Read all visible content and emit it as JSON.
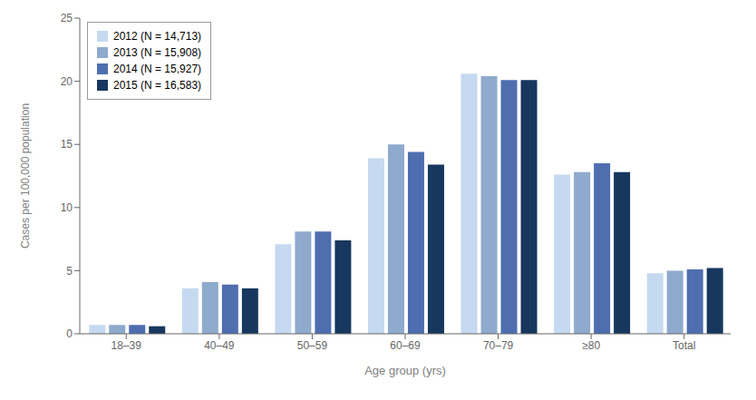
{
  "chart_data": {
    "type": "bar",
    "categories": [
      "18–39",
      "40–49",
      "50–59",
      "60–69",
      "70–79",
      "≥80",
      "Total"
    ],
    "series": [
      {
        "name": "2012 (N = 14,713)",
        "color": "#c5d9f1",
        "values": [
          0.7,
          3.6,
          7.1,
          13.9,
          20.6,
          12.6,
          4.8
        ]
      },
      {
        "name": "2013 (N = 15,908)",
        "color": "#8eaacc",
        "values": [
          0.7,
          4.1,
          8.1,
          15.0,
          20.4,
          12.8,
          5.0
        ]
      },
      {
        "name": "2014 (N = 15,927)",
        "color": "#4f6eb0",
        "values": [
          0.7,
          3.9,
          8.1,
          14.4,
          20.1,
          13.5,
          5.1
        ]
      },
      {
        "name": "2015 (N = 16,583)",
        "color": "#17375e",
        "values": [
          0.6,
          3.6,
          7.4,
          13.4,
          20.1,
          12.8,
          5.2
        ]
      }
    ],
    "xlabel": "Age group (yrs)",
    "ylabel": "Cases per 100,000 population",
    "ylim": [
      0,
      25
    ],
    "yticks": [
      0,
      5,
      10,
      15,
      20,
      25
    ],
    "grid": false,
    "legend": "upper left"
  }
}
